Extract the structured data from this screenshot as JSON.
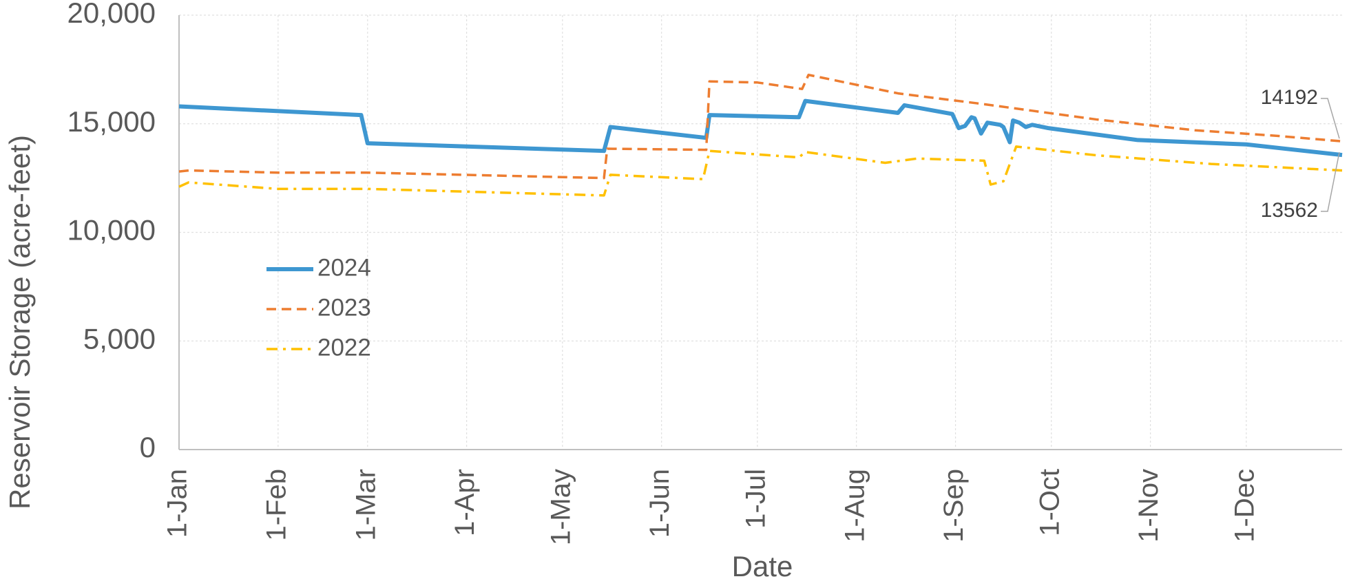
{
  "chart_data": {
    "type": "line",
    "xlabel": "Date",
    "ylabel": "Reservoir Storage (acre-feet)",
    "xlim": [
      "1-Jan",
      "31-Dec"
    ],
    "xticks": [
      "1-Jan",
      "1-Feb",
      "1-Mar",
      "1-Apr",
      "1-May",
      "1-Jun",
      "1-Jul",
      "1-Aug",
      "1-Sep",
      "1-Oct",
      "1-Nov",
      "1-Dec"
    ],
    "ylim": [
      0,
      20000
    ],
    "yticks": [
      0,
      {
        "value": 5000,
        "label": "5,000"
      },
      {
        "value": 10000,
        "label": "10,000"
      },
      {
        "value": 15000,
        "label": "15,000"
      },
      {
        "value": 20000,
        "label": "20,000"
      }
    ],
    "grid": true,
    "legend": "left",
    "series": [
      {
        "name": "2024",
        "color": "#3e97d1",
        "style": "solid",
        "x": [
          "1-Jan",
          "27-Feb",
          "1-Mar",
          "14-May",
          "16-May",
          "15-Jun",
          "16-Jun",
          "14-Jul",
          "16-Jul",
          "14-Aug",
          "16-Aug",
          "31-Aug",
          "2-Sep",
          "4-Sep",
          "6-Sep",
          "7-Sep",
          "9-Sep",
          "11-Sep",
          "15-Sep",
          "16-Sep",
          "18-Sep",
          "19-Sep",
          "21-Sep",
          "23-Sep",
          "25-Sep",
          "30-Sep",
          "28-Oct",
          "1-Dec",
          "31-Dec"
        ],
        "values": [
          15800,
          15400,
          14100,
          13750,
          14850,
          14350,
          15400,
          15300,
          16050,
          15500,
          15850,
          15450,
          14800,
          14900,
          15300,
          15250,
          14550,
          15050,
          14950,
          14850,
          14150,
          15150,
          15050,
          14850,
          14950,
          14800,
          14250,
          14050,
          13562
        ]
      },
      {
        "name": "2023",
        "color": "#ed7d31",
        "style": "dashed",
        "x": [
          "1-Jan",
          "4-Jan",
          "1-Feb",
          "1-Mar",
          "14-May",
          "15-May",
          "15-Jun",
          "16-Jun",
          "1-Jul",
          "15-Jul",
          "17-Jul",
          "14-Aug",
          "10-Sep",
          "25-Sep",
          "15-Oct",
          "15-Nov",
          "10-Dec",
          "31-Dec"
        ],
        "values": [
          12800,
          12850,
          12750,
          12750,
          12500,
          13850,
          13800,
          16950,
          16900,
          16600,
          17250,
          16400,
          15900,
          15600,
          15200,
          14700,
          14450,
          14192
        ]
      },
      {
        "name": "2022",
        "color": "#ffc000",
        "style": "dashdot",
        "x": [
          "1-Jan",
          "4-Jan",
          "1-Feb",
          "1-Mar",
          "14-May",
          "16-May",
          "14-Jun",
          "16-Jun",
          "14-Jul",
          "16-Jul",
          "10-Aug",
          "20-Aug",
          "10-Sep",
          "12-Sep",
          "16-Sep",
          "20-Sep",
          "15-Oct",
          "20-Nov",
          "31-Dec"
        ],
        "values": [
          12100,
          12300,
          12000,
          12000,
          11700,
          12650,
          12450,
          13750,
          13450,
          13700,
          13200,
          13400,
          13300,
          12200,
          12350,
          13950,
          13550,
          13150,
          12850
        ]
      }
    ]
  }
}
